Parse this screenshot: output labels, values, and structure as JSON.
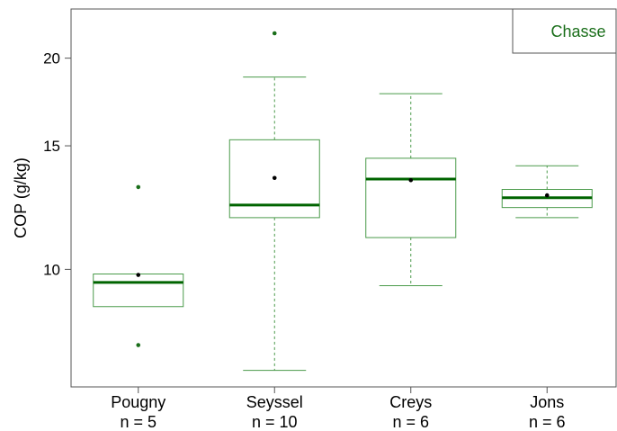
{
  "chart_data": {
    "type": "boxplot",
    "ylabel": "COP (g/kg)",
    "y_scale": "log",
    "ylim": [
      6.8,
      23.5
    ],
    "yticks": [
      10,
      15,
      20
    ],
    "legend": {
      "label": "Chasse",
      "placement": "top-right"
    },
    "colors": {
      "box": "#4a9a4a",
      "median": "#006400",
      "outlier": "#1a6e1a",
      "mean": "#000000",
      "frame": "#555555"
    },
    "categories": [
      {
        "name": "Pougny",
        "n_label": "n = 5",
        "whisker_low": 8.85,
        "q1": 8.85,
        "median": 9.58,
        "q3": 9.85,
        "whisker_high": 9.85,
        "mean": 9.82,
        "outliers": [
          13.1,
          7.8
        ]
      },
      {
        "name": "Seyssel",
        "n_label": "n = 10",
        "whisker_low": 7.18,
        "q1": 11.85,
        "median": 12.35,
        "q3": 15.3,
        "whisker_high": 18.8,
        "mean": 13.5,
        "outliers": [
          21.7
        ]
      },
      {
        "name": "Creys",
        "n_label": "n = 6",
        "whisker_low": 9.48,
        "q1": 11.1,
        "median": 13.45,
        "q3": 14.4,
        "whisker_high": 17.8,
        "mean": 13.4,
        "outliers": []
      },
      {
        "name": "Jons",
        "n_label": "n = 6",
        "whisker_low": 11.85,
        "q1": 12.25,
        "median": 12.65,
        "q3": 13.0,
        "whisker_high": 14.05,
        "mean": 12.75,
        "outliers": []
      }
    ]
  }
}
